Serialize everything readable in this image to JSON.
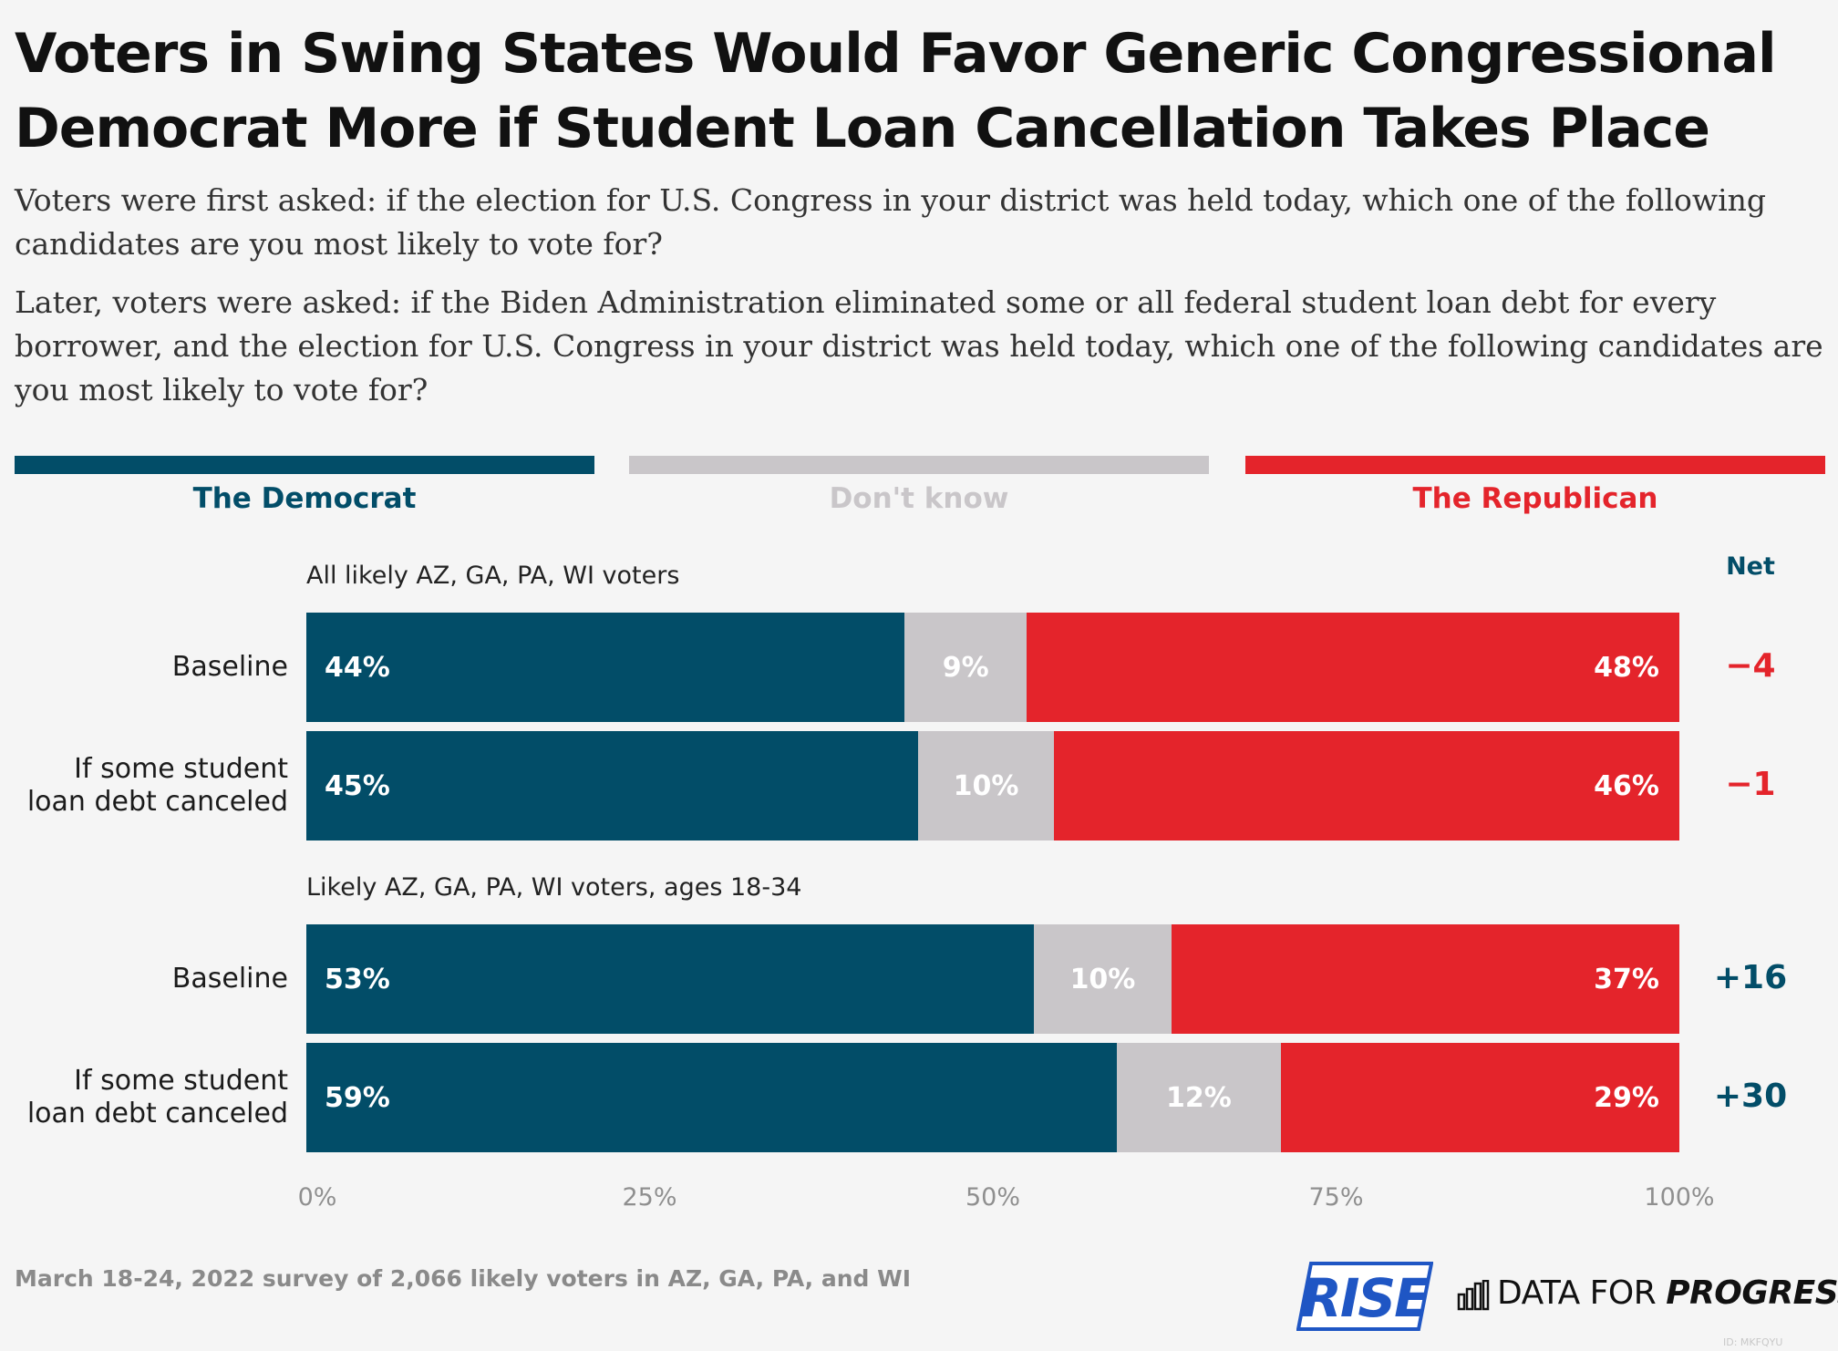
{
  "colors": {
    "democrat": "#024d68",
    "dont_know": "#c9c6c9",
    "republican": "#e4242b",
    "dem_text": "#024d68",
    "dk_text": "#c9c6c9",
    "rep_text": "#e4242b"
  },
  "title_lines": [
    "Voters in Swing States Would Favor Generic Congressional",
    "Democrat More if Student Loan Cancellation Takes Place"
  ],
  "subtitle_1": "Voters were first asked: if the election for U.S. Congress in your district was held today, which one of the following candidates are you most likely to vote for?",
  "subtitle_2": "Later, voters were asked: if the Biden Administration eliminated some or all federal student loan debt for every borrower, and the election for U.S. Congress in your district was held today, which one of the following candidates are you most likely to vote for?",
  "footnote": "March 18-24, 2022 survey of 2,066 likely voters in AZ, GA, PA, and WI",
  "logos": {
    "rise": "RISE",
    "dfp_prefix": "DATA FOR ",
    "dfp_bold": "PROGRESS",
    "chart_id": "ID: MKFQYU"
  },
  "chart_data": {
    "type": "bar",
    "stacked": true,
    "orientation": "horizontal",
    "legend": [
      "The Democrat",
      "Don't know",
      "The Republican"
    ],
    "legend_position": "top",
    "net_header": "Net",
    "x_ticks": [
      "0%",
      "25%",
      "50%",
      "75%",
      "100%"
    ],
    "xlim": [
      0,
      100
    ],
    "groups": [
      {
        "label": "All likely AZ, GA, PA, WI voters",
        "rows": [
          {
            "label_lines": [
              "Baseline"
            ],
            "values": [
              44,
              9,
              48
            ],
            "value_labels": [
              "44%",
              "9%",
              "48%"
            ],
            "net": "−4"
          },
          {
            "label_lines": [
              "If some student",
              "loan debt canceled"
            ],
            "values": [
              45,
              10,
              46
            ],
            "value_labels": [
              "45%",
              "10%",
              "46%"
            ],
            "net": "−1"
          }
        ]
      },
      {
        "label": "Likely AZ, GA, PA, WI voters, ages 18-34",
        "rows": [
          {
            "label_lines": [
              "Baseline"
            ],
            "values": [
              53,
              10,
              37
            ],
            "value_labels": [
              "53%",
              "10%",
              "37%"
            ],
            "net": "+16"
          },
          {
            "label_lines": [
              "If some student",
              "loan debt canceled"
            ],
            "values": [
              59,
              12,
              29
            ],
            "value_labels": [
              "59%",
              "12%",
              "29%"
            ],
            "net": "+30"
          }
        ]
      }
    ]
  }
}
